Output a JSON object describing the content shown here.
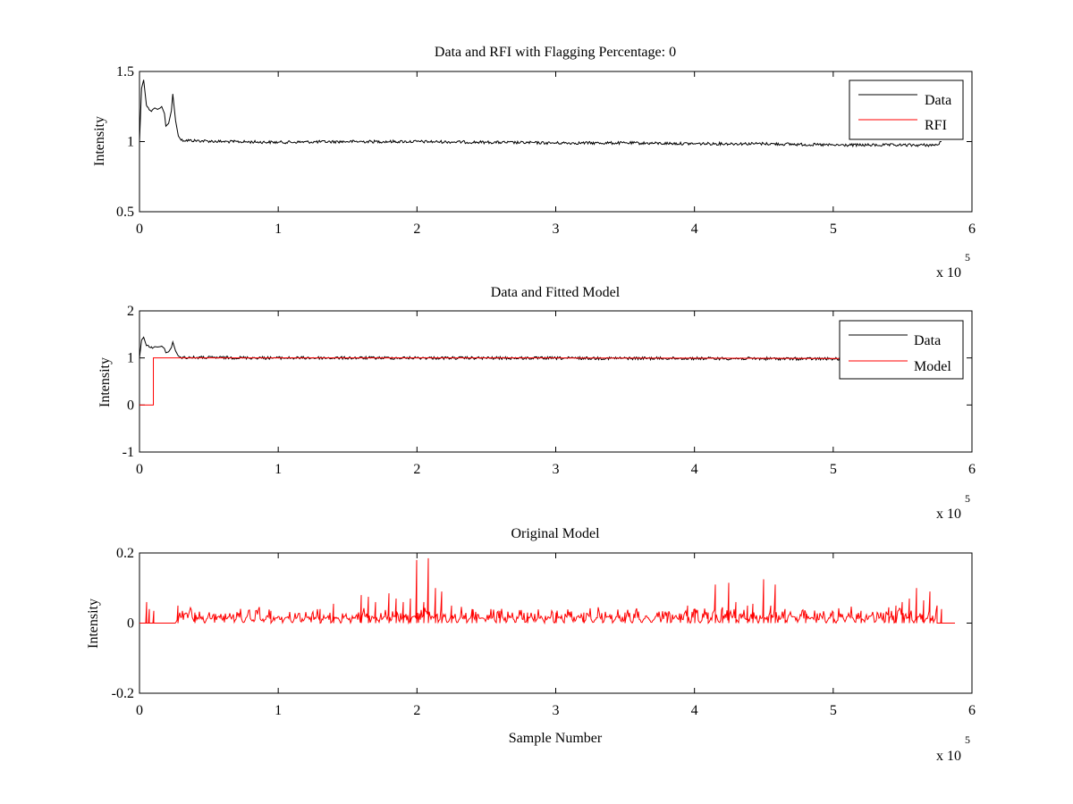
{
  "chart_data": [
    {
      "type": "line",
      "title": "Data and RFI with Flagging Percentage: 0",
      "xlabel": "",
      "ylabel": "Intensity",
      "xlim": [
        0,
        600000
      ],
      "ylim": [
        0.5,
        1.5
      ],
      "xticks": [
        "0",
        "1",
        "2",
        "3",
        "4",
        "5",
        "6"
      ],
      "yticks": [
        "0.5",
        "1",
        "1.5"
      ],
      "x_multiplier": "x 10",
      "x_exponent": "5",
      "legend_position": "top-right",
      "grid": false,
      "series": [
        {
          "name": "Data",
          "color": "#000000",
          "points": [
            [
              0,
              1.0
            ],
            [
              1500,
              1.38
            ],
            [
              3000,
              1.44
            ],
            [
              5000,
              1.26
            ],
            [
              8000,
              1.22
            ],
            [
              11000,
              1.24
            ],
            [
              13000,
              1.23
            ],
            [
              15000,
              1.24
            ],
            [
              16000,
              1.25
            ],
            [
              18000,
              1.2
            ],
            [
              19000,
              1.11
            ],
            [
              21000,
              1.13
            ],
            [
              23000,
              1.22
            ],
            [
              24000,
              1.34
            ],
            [
              26000,
              1.15
            ],
            [
              28000,
              1.04
            ],
            [
              30000,
              1.01
            ],
            [
              60000,
              1.0
            ],
            [
              100000,
              0.995
            ],
            [
              150000,
              1.0
            ],
            [
              200000,
              1.0
            ],
            [
              250000,
              0.995
            ],
            [
              300000,
              0.99
            ],
            [
              350000,
              0.99
            ],
            [
              400000,
              0.985
            ],
            [
              450000,
              0.985
            ],
            [
              500000,
              0.975
            ],
            [
              550000,
              0.975
            ],
            [
              575000,
              0.975
            ],
            [
              578000,
              1.0
            ]
          ]
        },
        {
          "name": "RFI",
          "color": "#ff0000",
          "points": []
        }
      ]
    },
    {
      "type": "line",
      "title": "Data and Fitted Model",
      "xlabel": "",
      "ylabel": "Intensity",
      "xlim": [
        0,
        600000
      ],
      "ylim": [
        -1,
        2
      ],
      "xticks": [
        "0",
        "1",
        "2",
        "3",
        "4",
        "5",
        "6"
      ],
      "yticks": [
        "-1",
        "0",
        "1",
        "2"
      ],
      "x_multiplier": "x 10",
      "x_exponent": "5",
      "legend_position": "top-right",
      "grid": false,
      "series": [
        {
          "name": "Data",
          "color": "#000000",
          "points": [
            [
              0,
              1.0
            ],
            [
              1500,
              1.38
            ],
            [
              3000,
              1.44
            ],
            [
              5000,
              1.26
            ],
            [
              8000,
              1.22
            ],
            [
              11000,
              1.24
            ],
            [
              13000,
              1.23
            ],
            [
              15000,
              1.24
            ],
            [
              16000,
              1.25
            ],
            [
              18000,
              1.2
            ],
            [
              19000,
              1.11
            ],
            [
              21000,
              1.13
            ],
            [
              23000,
              1.22
            ],
            [
              24000,
              1.34
            ],
            [
              26000,
              1.15
            ],
            [
              28000,
              1.04
            ],
            [
              30000,
              1.01
            ],
            [
              100000,
              1.0
            ],
            [
              200000,
              1.0
            ],
            [
              300000,
              0.995
            ],
            [
              400000,
              0.99
            ],
            [
              500000,
              0.98
            ],
            [
              578000,
              0.98
            ]
          ]
        },
        {
          "name": "Model",
          "color": "#ff0000",
          "points": [
            [
              0,
              0.0
            ],
            [
              10000,
              0.0
            ],
            [
              10000,
              1.0
            ],
            [
              100000,
              1.0
            ],
            [
              200000,
              1.0
            ],
            [
              300000,
              1.0
            ],
            [
              400000,
              0.995
            ],
            [
              500000,
              0.99
            ],
            [
              578000,
              0.99
            ]
          ]
        }
      ]
    },
    {
      "type": "line",
      "title": "Original Model",
      "xlabel": "Sample Number",
      "ylabel": "Intensity",
      "xlim": [
        0,
        600000
      ],
      "ylim": [
        -0.2,
        0.2
      ],
      "xticks": [
        "0",
        "1",
        "2",
        "3",
        "4",
        "5",
        "6"
      ],
      "yticks": [
        "-0.2",
        "0",
        "0.2"
      ],
      "x_multiplier": "x 10",
      "x_exponent": "5",
      "legend_position": "none",
      "grid": false,
      "series": [
        {
          "color": "#ff0000",
          "baseline": 0.0,
          "x_start": 0,
          "x_end": 588000,
          "bump_period": 7000,
          "bump_start": 26000,
          "bump_end": 575000,
          "bump_height": 0.022,
          "spikes": [
            [
              5000,
              0.06
            ],
            [
              7000,
              0.04
            ],
            [
              10000,
              0.035
            ],
            [
              28000,
              0.05
            ],
            [
              40000,
              0.03
            ],
            [
              95000,
              0.035
            ],
            [
              130000,
              0.04
            ],
            [
              140000,
              0.055
            ],
            [
              160000,
              0.08
            ],
            [
              165000,
              0.075
            ],
            [
              170000,
              0.06
            ],
            [
              180000,
              0.085
            ],
            [
              185000,
              0.07
            ],
            [
              190000,
              0.06
            ],
            [
              195000,
              0.07
            ],
            [
              200000,
              0.18
            ],
            [
              205000,
              0.06
            ],
            [
              208000,
              0.185
            ],
            [
              213000,
              0.1
            ],
            [
              218000,
              0.09
            ],
            [
              225000,
              0.05
            ],
            [
              240000,
              0.04
            ],
            [
              260000,
              0.035
            ],
            [
              280000,
              0.03
            ],
            [
              300000,
              0.03
            ],
            [
              320000,
              0.03
            ],
            [
              350000,
              0.03
            ],
            [
              380000,
              0.03
            ],
            [
              395000,
              0.05
            ],
            [
              400000,
              0.04
            ],
            [
              410000,
              0.03
            ],
            [
              415000,
              0.11
            ],
            [
              420000,
              0.045
            ],
            [
              425000,
              0.115
            ],
            [
              430000,
              0.06
            ],
            [
              438000,
              0.05
            ],
            [
              442000,
              0.055
            ],
            [
              450000,
              0.125
            ],
            [
              455000,
              0.05
            ],
            [
              458000,
              0.11
            ],
            [
              465000,
              0.04
            ],
            [
              480000,
              0.03
            ],
            [
              500000,
              0.03
            ],
            [
              520000,
              0.035
            ],
            [
              540000,
              0.045
            ],
            [
              545000,
              0.05
            ],
            [
              550000,
              0.06
            ],
            [
              555000,
              0.07
            ],
            [
              560000,
              0.1
            ],
            [
              565000,
              0.065
            ],
            [
              570000,
              0.09
            ],
            [
              575000,
              0.05
            ],
            [
              578000,
              0.04
            ]
          ]
        }
      ]
    }
  ]
}
